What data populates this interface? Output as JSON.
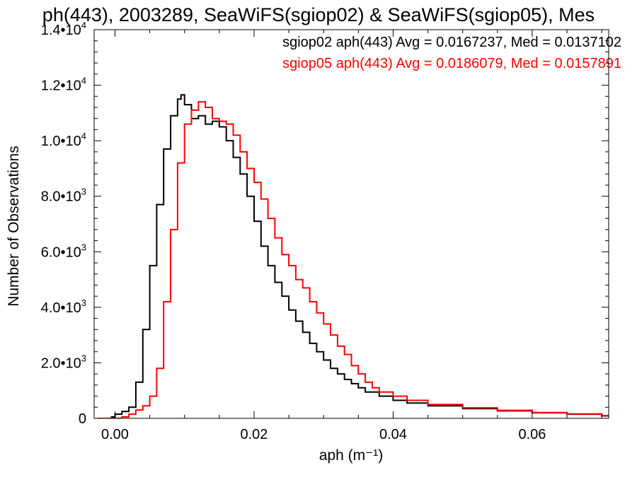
{
  "chart_data": {
    "type": "line",
    "step": true,
    "title": "ph(443), 2003289, SeaWiFS(sgiop02) & SeaWiFS(sgiop05), Mes",
    "xlabel": "aph (m⁻¹)",
    "ylabel": "Number of Observations",
    "xlim": [
      -0.003,
      0.071
    ],
    "ylim": [
      0,
      14000
    ],
    "x_ticks": [
      {
        "value": 0.0,
        "label": "0.00"
      },
      {
        "value": 0.02,
        "label": "0.02"
      },
      {
        "value": 0.04,
        "label": "0.04"
      },
      {
        "value": 0.06,
        "label": "0.06"
      }
    ],
    "y_ticks": [
      {
        "value": 0,
        "mant": "0",
        "exp": ""
      },
      {
        "value": 2000,
        "mant": "2.0•10",
        "exp": "3"
      },
      {
        "value": 4000,
        "mant": "4.0•10",
        "exp": "3"
      },
      {
        "value": 6000,
        "mant": "6.0•10",
        "exp": "3"
      },
      {
        "value": 8000,
        "mant": "8.0•10",
        "exp": "3"
      },
      {
        "value": 10000,
        "mant": "1.0•10",
        "exp": "4"
      },
      {
        "value": 12000,
        "mant": "1.2•10",
        "exp": "4"
      },
      {
        "value": 14000,
        "mant": "1.4•10",
        "exp": "4"
      }
    ],
    "grid": false,
    "legend_position": "top-right",
    "series": [
      {
        "name": "sgiop02 aph(443) Avg = 0.0167237, Med = 0.0137102",
        "color": "#000000",
        "points": [
          [
            -0.0025,
            0
          ],
          [
            -0.0005,
            50
          ],
          [
            0.0,
            150
          ],
          [
            0.001,
            250
          ],
          [
            0.002,
            400
          ],
          [
            0.003,
            1300
          ],
          [
            0.004,
            3200
          ],
          [
            0.005,
            5500
          ],
          [
            0.006,
            7700
          ],
          [
            0.007,
            9700
          ],
          [
            0.008,
            10900
          ],
          [
            0.009,
            11500
          ],
          [
            0.0095,
            11650
          ],
          [
            0.01,
            11300
          ],
          [
            0.011,
            10800
          ],
          [
            0.012,
            10900
          ],
          [
            0.013,
            10600
          ],
          [
            0.014,
            10700
          ],
          [
            0.015,
            10500
          ],
          [
            0.016,
            10000
          ],
          [
            0.017,
            9400
          ],
          [
            0.018,
            8800
          ],
          [
            0.019,
            8000
          ],
          [
            0.02,
            7100
          ],
          [
            0.021,
            6200
          ],
          [
            0.022,
            5500
          ],
          [
            0.023,
            4900
          ],
          [
            0.024,
            4400
          ],
          [
            0.025,
            3900
          ],
          [
            0.026,
            3500
          ],
          [
            0.027,
            3100
          ],
          [
            0.028,
            2700
          ],
          [
            0.029,
            2400
          ],
          [
            0.03,
            2100
          ],
          [
            0.031,
            1800
          ],
          [
            0.032,
            1600
          ],
          [
            0.033,
            1400
          ],
          [
            0.034,
            1250
          ],
          [
            0.035,
            1100
          ],
          [
            0.036,
            950
          ],
          [
            0.038,
            800
          ],
          [
            0.04,
            650
          ],
          [
            0.042,
            550
          ],
          [
            0.045,
            450
          ],
          [
            0.05,
            350
          ],
          [
            0.055,
            270
          ],
          [
            0.06,
            200
          ],
          [
            0.065,
            150
          ],
          [
            0.07,
            90
          ]
        ]
      },
      {
        "name": "sgiop05 aph(443) Avg = 0.0186079, Med = 0.0157891",
        "color": "#ff0000",
        "points": [
          [
            -0.0025,
            0
          ],
          [
            0.0,
            0
          ],
          [
            0.001,
            50
          ],
          [
            0.002,
            150
          ],
          [
            0.003,
            300
          ],
          [
            0.004,
            450
          ],
          [
            0.005,
            800
          ],
          [
            0.006,
            1800
          ],
          [
            0.007,
            4200
          ],
          [
            0.008,
            6800
          ],
          [
            0.009,
            9200
          ],
          [
            0.01,
            10600
          ],
          [
            0.011,
            11100
          ],
          [
            0.012,
            11400
          ],
          [
            0.013,
            11200
          ],
          [
            0.014,
            10800
          ],
          [
            0.015,
            10700
          ],
          [
            0.016,
            10600
          ],
          [
            0.017,
            10200
          ],
          [
            0.018,
            9600
          ],
          [
            0.019,
            9000
          ],
          [
            0.02,
            8500
          ],
          [
            0.021,
            7900
          ],
          [
            0.022,
            7200
          ],
          [
            0.023,
            6500
          ],
          [
            0.024,
            5900
          ],
          [
            0.025,
            5500
          ],
          [
            0.026,
            5000
          ],
          [
            0.027,
            4700
          ],
          [
            0.028,
            4200
          ],
          [
            0.029,
            3800
          ],
          [
            0.03,
            3400
          ],
          [
            0.031,
            3000
          ],
          [
            0.032,
            2600
          ],
          [
            0.033,
            2300
          ],
          [
            0.034,
            1900
          ],
          [
            0.035,
            1600
          ],
          [
            0.036,
            1300
          ],
          [
            0.037,
            1100
          ],
          [
            0.038,
            950
          ],
          [
            0.04,
            800
          ],
          [
            0.042,
            650
          ],
          [
            0.045,
            500
          ],
          [
            0.05,
            380
          ],
          [
            0.055,
            290
          ],
          [
            0.06,
            210
          ],
          [
            0.065,
            160
          ],
          [
            0.07,
            100
          ]
        ]
      }
    ]
  }
}
